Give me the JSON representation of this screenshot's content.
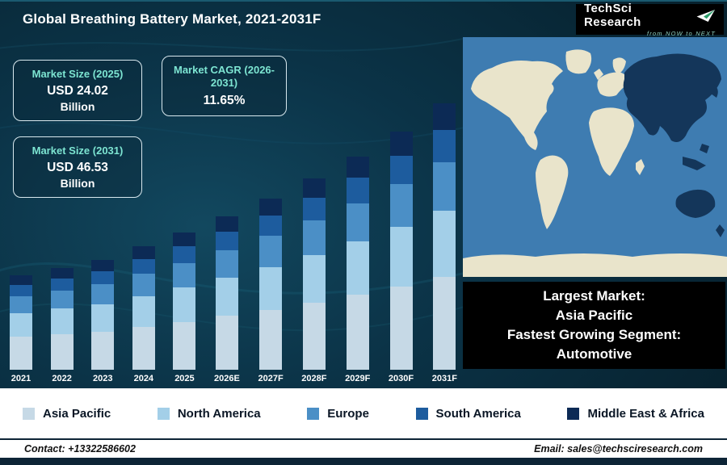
{
  "header": {
    "title": "Global Breathing Battery Market, 2021-2031F"
  },
  "logo": {
    "brand": "TechSci Research",
    "tagline": "from NOW to NEXT"
  },
  "cards": [
    {
      "label": "Market Size (2025)",
      "value": "USD 24.02",
      "unit": "Billion"
    },
    {
      "label": "Market CAGR (2026-2031)",
      "value": "11.65%",
      "unit": ""
    },
    {
      "label": "Market Size (2031)",
      "value": "USD 46.53",
      "unit": "Billion"
    }
  ],
  "chart_data": {
    "type": "bar",
    "subtype": "stacked",
    "title": "Global Breathing Battery Market, 2021-2031F",
    "unit": "USD Billion",
    "categories": [
      "2021",
      "2022",
      "2023",
      "2024",
      "2025",
      "2026E",
      "2027F",
      "2028F",
      "2029F",
      "2030F",
      "2031F"
    ],
    "series": [
      {
        "name": "Asia Pacific",
        "color": "#c6d9e6",
        "values": [
          5.8,
          6.2,
          6.7,
          7.5,
          8.4,
          9.4,
          10.5,
          11.7,
          13.1,
          14.6,
          16.3
        ]
      },
      {
        "name": "North America",
        "color": "#a3cfe8",
        "values": [
          4.1,
          4.5,
          4.8,
          5.4,
          6.0,
          6.7,
          7.5,
          8.4,
          9.3,
          10.4,
          11.6
        ]
      },
      {
        "name": "Europe",
        "color": "#4b8fc6",
        "values": [
          3.0,
          3.2,
          3.5,
          3.9,
          4.3,
          4.8,
          5.4,
          6.0,
          6.7,
          7.5,
          8.4
        ]
      },
      {
        "name": "South America",
        "color": "#1d5c9e",
        "values": [
          2.0,
          2.1,
          2.3,
          2.6,
          2.9,
          3.2,
          3.6,
          4.0,
          4.5,
          5.0,
          5.6
        ]
      },
      {
        "name": "Middle East & Africa",
        "color": "#0c2a55",
        "values": [
          1.7,
          1.8,
          1.9,
          2.2,
          2.4,
          2.7,
          3.0,
          3.4,
          3.7,
          4.2,
          4.7
        ]
      }
    ],
    "totals": [
      16.6,
      17.8,
      19.2,
      21.6,
      24.02,
      26.8,
      30.0,
      33.5,
      37.3,
      41.7,
      46.53
    ],
    "ylim": [
      0,
      50
    ],
    "grid": false,
    "legend_position": "bottom"
  },
  "info_box": {
    "lines": [
      "Largest Market:",
      "Asia Pacific",
      "Fastest Growing Segment:",
      "Automotive"
    ]
  },
  "footer": {
    "contact": "Contact: +13322586602",
    "email": "Email: sales@techsciresearch.com"
  },
  "colors": {
    "accent_teal": "#7de5d2",
    "panel_background": "#0b3347",
    "map_ocean": "#3e7cb1",
    "map_land": "#e9e4cb",
    "map_highlight": "#14365a",
    "footer_bar": "#0d2436"
  }
}
